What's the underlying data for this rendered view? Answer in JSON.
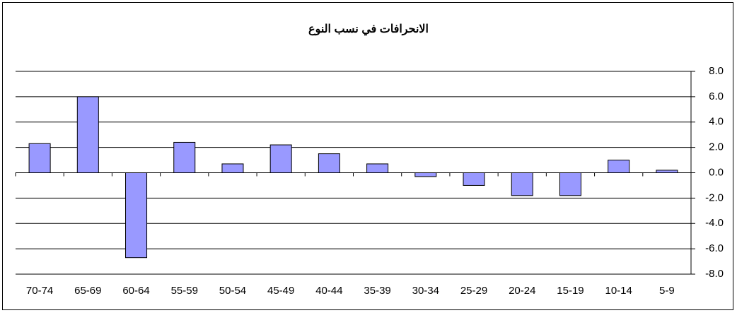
{
  "chart_data": {
    "type": "bar",
    "title": "الانحرافات في نسب النوع",
    "categories": [
      "70-74",
      "65-69",
      "60-64",
      "55-59",
      "50-54",
      "45-49",
      "40-44",
      "35-39",
      "30-34",
      "25-29",
      "20-24",
      "15-19",
      "10-14",
      "5-9"
    ],
    "values": [
      2.3,
      6.0,
      -6.7,
      2.4,
      0.7,
      2.2,
      1.5,
      0.7,
      -0.3,
      -1.0,
      -1.8,
      -1.8,
      1.0,
      0.2
    ],
    "color": "#9999ff",
    "ylim": [
      -8,
      8
    ],
    "yticks": [
      {
        "value": -8,
        "label": "-8.0"
      },
      {
        "value": -6,
        "label": "-6.0"
      },
      {
        "value": -4,
        "label": "-4.0"
      },
      {
        "value": -2,
        "label": "-2.0"
      },
      {
        "value": 0,
        "label": "0.0"
      },
      {
        "value": 2,
        "label": "2.0"
      },
      {
        "value": 4,
        "label": "4.0"
      },
      {
        "value": 6,
        "label": "6.0"
      },
      {
        "value": 8,
        "label": "8.0"
      }
    ],
    "grid": true
  }
}
